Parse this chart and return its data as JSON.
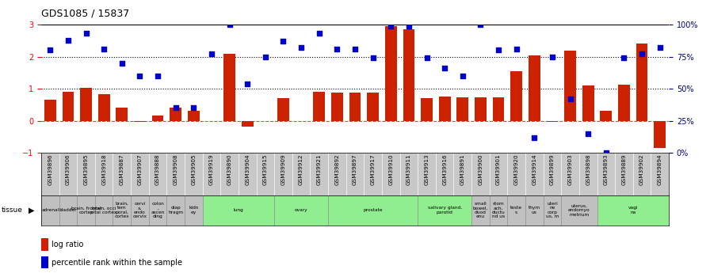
{
  "title": "GDS1085 / 15837",
  "samples": [
    "GSM39896",
    "GSM39906",
    "GSM39895",
    "GSM39918",
    "GSM39887",
    "GSM39907",
    "GSM39888",
    "GSM39908",
    "GSM39905",
    "GSM39919",
    "GSM39890",
    "GSM39904",
    "GSM39915",
    "GSM39909",
    "GSM39912",
    "GSM39921",
    "GSM39892",
    "GSM39897",
    "GSM39917",
    "GSM39910",
    "GSM39911",
    "GSM39913",
    "GSM39916",
    "GSM39891",
    "GSM39900",
    "GSM39901",
    "GSM39920",
    "GSM39914",
    "GSM39899",
    "GSM39903",
    "GSM39898",
    "GSM39893",
    "GSM39889",
    "GSM39902",
    "GSM39894"
  ],
  "log_ratio": [
    0.65,
    0.9,
    1.02,
    0.82,
    0.4,
    -0.04,
    0.17,
    0.4,
    0.32,
    0.0,
    2.1,
    -0.18,
    0.0,
    0.7,
    0.0,
    0.9,
    0.88,
    0.88,
    0.88,
    2.95,
    2.85,
    0.7,
    0.75,
    0.72,
    0.72,
    0.72,
    1.55,
    2.05,
    -0.04,
    2.18,
    1.1,
    0.32,
    1.12,
    2.42,
    -0.85
  ],
  "pct_rank": [
    80,
    88,
    93,
    81,
    70,
    60,
    60,
    35,
    35,
    77,
    100,
    54,
    75,
    87,
    82,
    93,
    81,
    81,
    74,
    99,
    99,
    74,
    66,
    60,
    100,
    80,
    81,
    12,
    75,
    42,
    15,
    0,
    74,
    77,
    82
  ],
  "tissues": [
    {
      "label": "adrenal",
      "start": 0,
      "end": 1,
      "color": "#c0c0c0"
    },
    {
      "label": "bladder",
      "start": 1,
      "end": 2,
      "color": "#c0c0c0"
    },
    {
      "label": "brain, frontal\ncortex",
      "start": 2,
      "end": 3,
      "color": "#c0c0c0"
    },
    {
      "label": "brain, occi\npital cortex",
      "start": 3,
      "end": 4,
      "color": "#c0c0c0"
    },
    {
      "label": "brain,\ntem\nporal,\ncortex",
      "start": 4,
      "end": 5,
      "color": "#c0c0c0"
    },
    {
      "label": "cervi\nx,\nendo\ncervix",
      "start": 5,
      "end": 6,
      "color": "#c0c0c0"
    },
    {
      "label": "colon\n,\nascen\nding",
      "start": 6,
      "end": 7,
      "color": "#c0c0c0"
    },
    {
      "label": "diap\nhragm",
      "start": 7,
      "end": 8,
      "color": "#c0c0c0"
    },
    {
      "label": "kidn\ney",
      "start": 8,
      "end": 9,
      "color": "#c0c0c0"
    },
    {
      "label": "lung",
      "start": 9,
      "end": 13,
      "color": "#90ee90"
    },
    {
      "label": "ovary",
      "start": 13,
      "end": 16,
      "color": "#90ee90"
    },
    {
      "label": "prostate",
      "start": 16,
      "end": 21,
      "color": "#90ee90"
    },
    {
      "label": "salivary gland,\nparotid",
      "start": 21,
      "end": 24,
      "color": "#90ee90"
    },
    {
      "label": "small\nbowel,\nduod\nenu",
      "start": 24,
      "end": 25,
      "color": "#c0c0c0"
    },
    {
      "label": "stom\nach,\nductu\nnd us",
      "start": 25,
      "end": 26,
      "color": "#c0c0c0"
    },
    {
      "label": "teste\ns",
      "start": 26,
      "end": 27,
      "color": "#c0c0c0"
    },
    {
      "label": "thym\nus",
      "start": 27,
      "end": 28,
      "color": "#c0c0c0"
    },
    {
      "label": "uteri\nne\ncorp\nus, m",
      "start": 28,
      "end": 29,
      "color": "#c0c0c0"
    },
    {
      "label": "uterus,\nendomyo\nmetrium",
      "start": 29,
      "end": 31,
      "color": "#c0c0c0"
    },
    {
      "label": "vagi\nna",
      "start": 31,
      "end": 35,
      "color": "#90ee90"
    }
  ],
  "bar_color": "#cc2200",
  "dot_color": "#0000cc",
  "ylim_left": [
    -1,
    3
  ],
  "ylim_right": [
    0,
    100
  ],
  "yticks_left": [
    -1,
    0,
    1,
    2,
    3
  ],
  "yticks_right": [
    0,
    25,
    50,
    75,
    100
  ],
  "background_color": "#ffffff"
}
